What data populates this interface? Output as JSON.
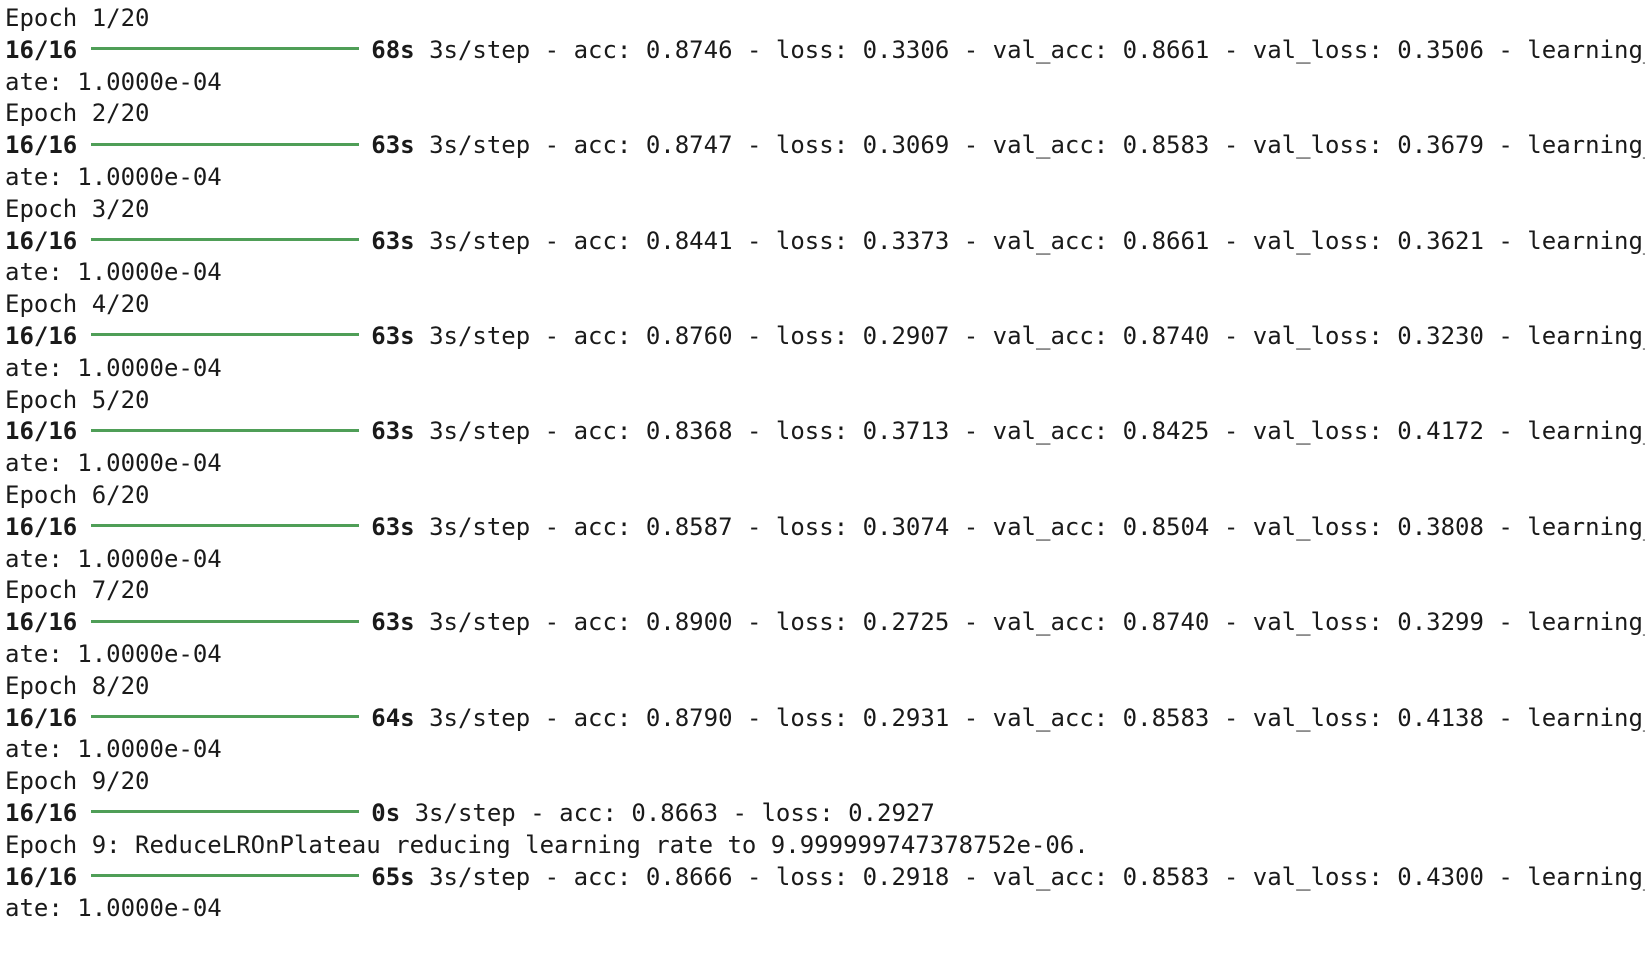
{
  "colors": {
    "progress_bar": "#4f9e57",
    "highlight_underline": "#d9262d",
    "text": "#1a1a1a",
    "background": "#ffffff"
  },
  "epochs": [
    {
      "header": "Epoch 1/20",
      "step": "16/16",
      "time": "68s",
      "speed": "3s/step",
      "acc": "acc: 0.8746",
      "loss": "loss: 0.3306",
      "val_acc": "val_acc: 0.8661",
      "val_acc_highlighted": true,
      "val_loss": "val_loss: 0.3506",
      "lr_head": "learning_r",
      "lr_tail": "ate: 1.0000e-04"
    },
    {
      "header": "Epoch 2/20",
      "step": "16/16",
      "time": "63s",
      "speed": "3s/step",
      "acc": "acc: 0.8747",
      "loss": "loss: 0.3069",
      "val_acc": "val_acc: 0.8583",
      "val_acc_highlighted": false,
      "val_loss": "val_loss: 0.3679",
      "lr_head": "learning_r",
      "lr_tail": "ate: 1.0000e-04"
    },
    {
      "header": "Epoch 3/20",
      "step": "16/16",
      "time": "63s",
      "speed": "3s/step",
      "acc": "acc: 0.8441",
      "loss": "loss: 0.3373",
      "val_acc": "val_acc: 0.8661",
      "val_acc_highlighted": false,
      "val_loss": "val_loss: 0.3621",
      "lr_head": "learning_r",
      "lr_tail": "ate: 1.0000e-04"
    },
    {
      "header": "Epoch 4/20",
      "step": "16/16",
      "time": "63s",
      "speed": "3s/step",
      "acc": "acc: 0.8760",
      "loss": "loss: 0.2907",
      "val_acc": "val_acc: 0.8740",
      "val_acc_highlighted": true,
      "val_loss": "val_loss: 0.3230",
      "lr_head": "learning_r",
      "lr_tail": "ate: 1.0000e-04"
    },
    {
      "header": "Epoch 5/20",
      "step": "16/16",
      "time": "63s",
      "speed": "3s/step",
      "acc": "acc: 0.8368",
      "loss": "loss: 0.3713",
      "val_acc": "val_acc: 0.8425",
      "val_acc_highlighted": false,
      "val_loss": "val_loss: 0.4172",
      "lr_head": "learning_r",
      "lr_tail": "ate: 1.0000e-04"
    },
    {
      "header": "Epoch 6/20",
      "step": "16/16",
      "time": "63s",
      "speed": "3s/step",
      "acc": "acc: 0.8587",
      "loss": "loss: 0.3074",
      "val_acc": "val_acc: 0.8504",
      "val_acc_highlighted": false,
      "val_loss": "val_loss: 0.3808",
      "lr_head": "learning_r",
      "lr_tail": "ate: 1.0000e-04"
    },
    {
      "header": "Epoch 7/20",
      "step": "16/16",
      "time": "63s",
      "speed": "3s/step",
      "acc": "acc: 0.8900",
      "loss": "loss: 0.2725",
      "val_acc": "val_acc: 0.8740",
      "val_acc_highlighted": true,
      "val_loss": "val_loss: 0.3299",
      "lr_head": "learning_r",
      "lr_tail": "ate: 1.0000e-04"
    },
    {
      "header": "Epoch 8/20",
      "step": "16/16",
      "time": "64s",
      "speed": "3s/step",
      "acc": "acc: 0.8790",
      "loss": "loss: 0.2931",
      "val_acc": "val_acc: 0.8583",
      "val_acc_highlighted": false,
      "val_loss": "val_loss: 0.4138",
      "lr_head": "learning_r",
      "lr_tail": "ate: 1.0000e-04"
    }
  ],
  "epoch9": {
    "header": "Epoch 9/20",
    "partial": {
      "step": "16/16",
      "time": "0s",
      "speed": "3s/step",
      "acc": "acc: 0.8663",
      "loss": "loss: 0.2927"
    },
    "callback_message": "Epoch 9: ReduceLROnPlateau reducing learning rate to 9.999999747378752e-06.",
    "final": {
      "step": "16/16",
      "time": "65s",
      "speed": "3s/step",
      "acc": "acc: 0.8666",
      "loss": "loss: 0.2918",
      "val_acc": "val_acc: 0.8583",
      "val_loss": "val_loss: 0.4300",
      "lr_head": "learning_r",
      "lr_tail": "ate: 1.0000e-04"
    }
  }
}
